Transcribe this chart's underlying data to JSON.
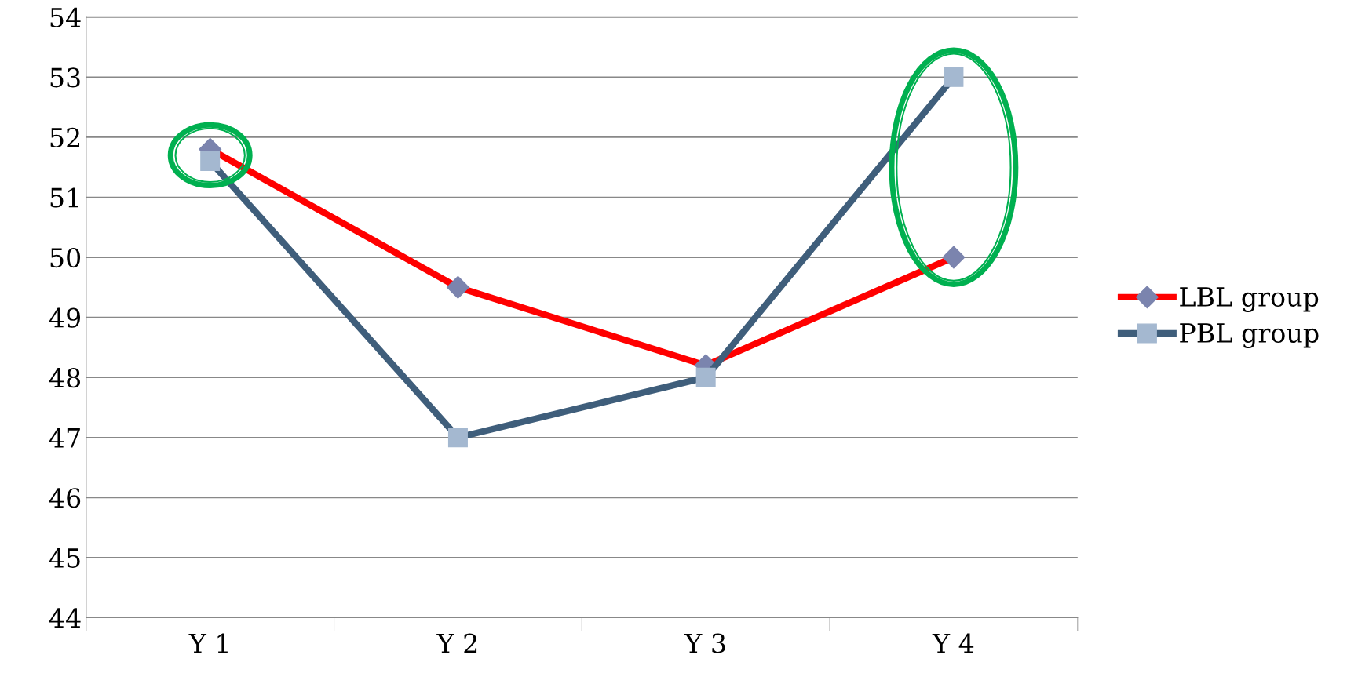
{
  "chart_data": {
    "type": "line",
    "categories": [
      "Y 1",
      "Y 2",
      "Y 3",
      "Y 4"
    ],
    "series": [
      {
        "name": "LBL group",
        "color": "#ff0000",
        "marker": "diamond",
        "values": [
          51.8,
          49.5,
          48.2,
          50.0
        ]
      },
      {
        "name": "PBL group",
        "color": "#3f5e7b",
        "marker": "square",
        "values": [
          51.6,
          47.0,
          48.0,
          53.0
        ]
      }
    ],
    "ylim": [
      44,
      54
    ],
    "yticks": [
      44,
      45,
      46,
      47,
      48,
      49,
      50,
      51,
      52,
      53,
      54
    ],
    "grid": "y",
    "legend": "right",
    "line_style": "solid"
  }
}
